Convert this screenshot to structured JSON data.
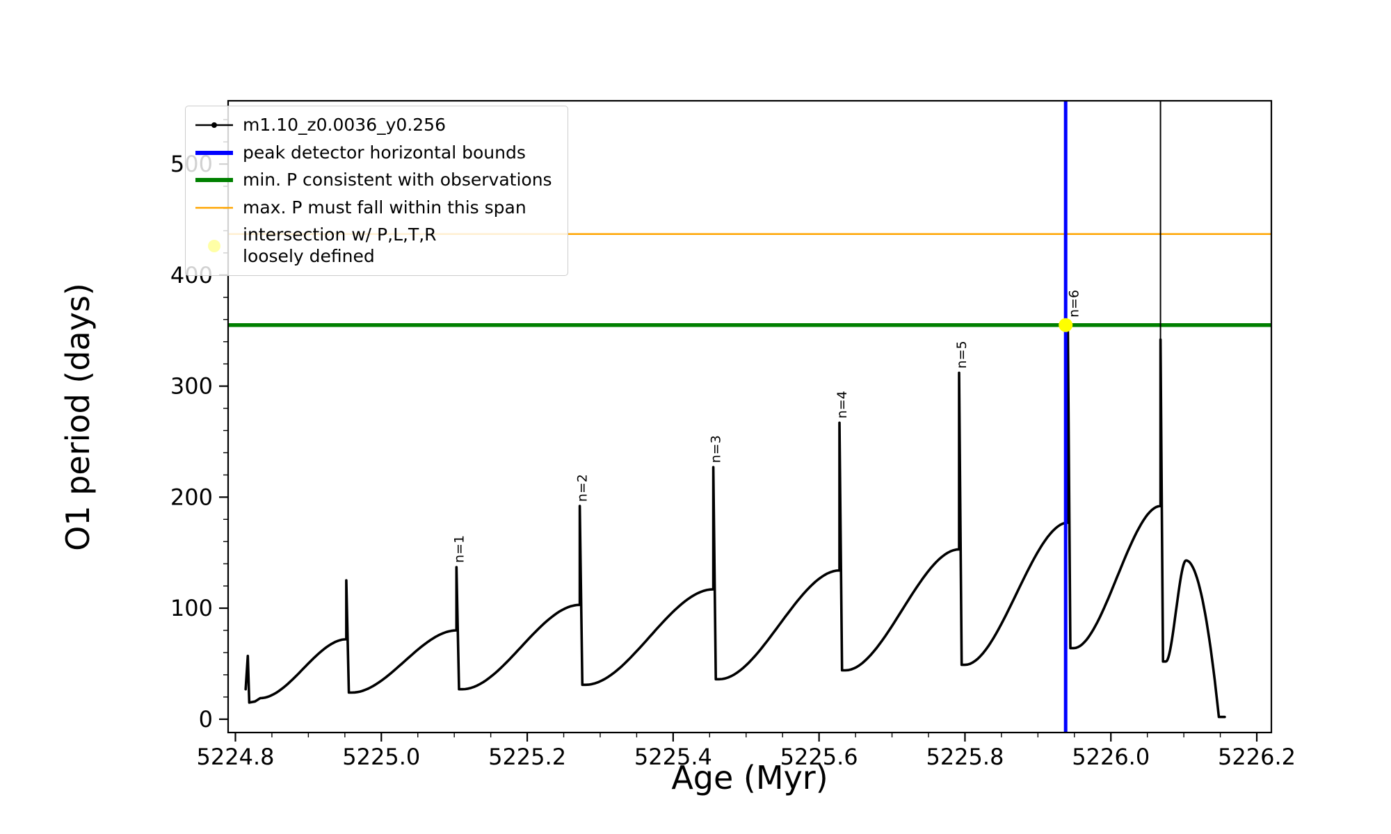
{
  "figure": {
    "background": "#ffffff"
  },
  "legend": {
    "items": [
      {
        "label": "m1.10_z0.0036_y0.256",
        "sample": "line-with-dot",
        "color": "#000000"
      },
      {
        "label": "peak detector horizontal bounds",
        "sample": "thick-line",
        "color": "#0000ff"
      },
      {
        "label": "min. P consistent with observations",
        "sample": "thick-line",
        "color": "#008000"
      },
      {
        "label": "max. P must fall within this span",
        "sample": "line",
        "color": "#ffa500"
      },
      {
        "label": "intersection w/ P,L,T,R\nloosely defined",
        "sample": "faint-dot",
        "color": "#ffff00"
      }
    ]
  },
  "chart_data": {
    "type": "line",
    "title": "",
    "xlabel": "Age (Myr)",
    "ylabel": "O1 period (days)",
    "xlim": [
      5224.79,
      5226.22
    ],
    "ylim": [
      -12,
      557
    ],
    "grid": false,
    "legend_position": "upper-left",
    "xticks": {
      "values": [
        5224.8,
        5225.0,
        5225.2,
        5225.4,
        5225.6,
        5225.8,
        5226.0,
        5226.2
      ],
      "labels": [
        "5224.8",
        "5225.0",
        "5225.2",
        "5225.4",
        "5225.6",
        "5225.8",
        "5226.0",
        "5226.2"
      ],
      "minor_step": 0.05
    },
    "yticks": {
      "values": [
        0,
        100,
        200,
        300,
        400,
        500
      ],
      "labels": [
        "0",
        "100",
        "200",
        "300",
        "400",
        "500"
      ],
      "minor_step": 20
    },
    "series": [
      {
        "name": "m1.10_z0.0036_y0.256",
        "color": "#000000",
        "style": "line-with-dot-markers"
      }
    ],
    "hlines": [
      {
        "name": "max-P-must-fall-within-span",
        "y": 437,
        "color": "#ffa500",
        "width": 2.5
      },
      {
        "name": "min-P-consistent-with-observations",
        "y": 355,
        "color": "#008000",
        "width": 5.5
      }
    ],
    "vlines": [
      {
        "name": "peak-detector-horizontal-bound",
        "x": 5225.938,
        "color": "#0000ff",
        "width": 5
      }
    ],
    "extra_spike": {
      "name": "tall-data-spike",
      "x": 5226.068,
      "y0": 340,
      "y1": 557,
      "color": "#000000",
      "width": 2
    },
    "intersection_point": {
      "x": 5225.938,
      "y": 355,
      "color": "#ffff00",
      "radius": 10
    },
    "peak_labels": [
      {
        "text": "n=1",
        "x": 5225.103,
        "y": 137
      },
      {
        "text": "n=2",
        "x": 5225.272,
        "y": 192
      },
      {
        "text": "n=3",
        "x": 5225.455,
        "y": 227
      },
      {
        "text": "n=4",
        "x": 5225.628,
        "y": 267
      },
      {
        "text": "n=5",
        "x": 5225.792,
        "y": 312
      },
      {
        "text": "n=6",
        "x": 5225.946,
        "y": 358
      }
    ],
    "curve": {
      "intro_points": [
        [
          5224.814,
          27
        ],
        [
          5224.817,
          57
        ],
        [
          5224.819,
          15
        ],
        [
          5224.827,
          16
        ],
        [
          5224.834,
          19
        ]
      ],
      "cycles": [
        {
          "x0": 5224.834,
          "x1": 5224.952,
          "y0": 19,
          "y_arc": 72,
          "y_spike": 125,
          "y_drop": 24
        },
        {
          "x0": 5224.96,
          "x1": 5225.103,
          "y0": 24,
          "y_arc": 80,
          "y_spike": 137,
          "y_drop": 27
        },
        {
          "x0": 5225.111,
          "x1": 5225.272,
          "y0": 27,
          "y_arc": 103,
          "y_spike": 192,
          "y_drop": 31
        },
        {
          "x0": 5225.28,
          "x1": 5225.455,
          "y0": 31,
          "y_arc": 117,
          "y_spike": 227,
          "y_drop": 36
        },
        {
          "x0": 5225.463,
          "x1": 5225.628,
          "y0": 36,
          "y_arc": 134,
          "y_spike": 267,
          "y_drop": 44
        },
        {
          "x0": 5225.636,
          "x1": 5225.792,
          "y0": 44,
          "y_arc": 153,
          "y_spike": 312,
          "y_drop": 49
        },
        {
          "x0": 5225.8,
          "x1": 5225.941,
          "y0": 49,
          "y_arc": 177,
          "y_spike": 358,
          "y_drop": 64
        },
        {
          "x0": 5225.949,
          "x1": 5226.068,
          "y0": 64,
          "y_arc": 192,
          "y_spike": 342,
          "y_drop": 52
        }
      ],
      "tail": {
        "x0": 5226.0755,
        "y0": 52,
        "x_peak": 5226.103,
        "y_peak": 143,
        "x_end": 5226.148,
        "y_end": 2,
        "x_flat_end": 5226.156
      }
    }
  }
}
